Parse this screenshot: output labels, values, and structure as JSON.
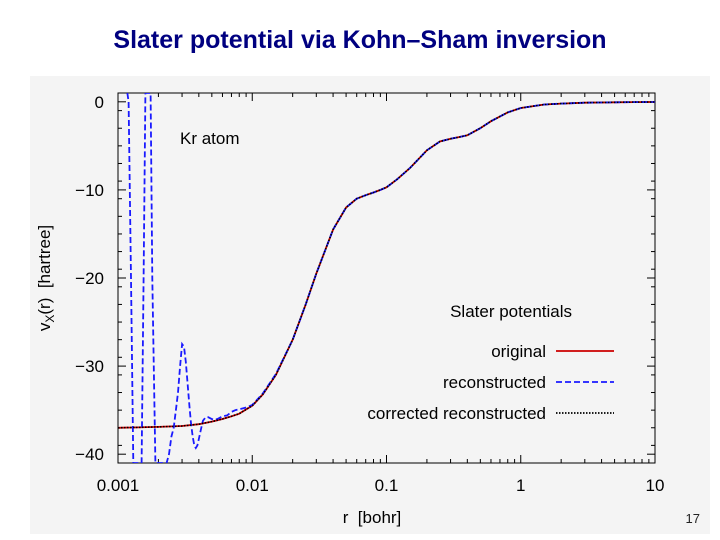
{
  "slide": {
    "title": "Slater potential via Kohn–Sham inversion",
    "page_number": "17"
  },
  "colors": {
    "title": "#000080",
    "original": "#cc0000",
    "reconstructed": "#1a1aff",
    "corrected_reconstructed": "#000000",
    "panel_background": "#f4f4f4"
  },
  "chart_data": {
    "type": "line",
    "annotation": "Kr atom",
    "xlabel": "r  [bohr]",
    "ylabel_main": "v",
    "ylabel_sub": "X",
    "ylabel_rest": "(r)  [hartree]",
    "x_scale": "log",
    "xlim": [
      0.001,
      10
    ],
    "ylim": [
      -41,
      1
    ],
    "x_ticks": [
      0.001,
      0.01,
      0.1,
      1,
      10
    ],
    "x_tick_labels": [
      "0.001",
      "0.01",
      "0.1",
      "1",
      "10"
    ],
    "y_ticks": [
      0,
      -10,
      -20,
      -30,
      -40
    ],
    "y_tick_labels": [
      "0",
      "−10",
      "−20",
      "−30",
      "−40"
    ],
    "grid": false,
    "legend_title": "Slater potentials",
    "legend_position": "lower-right",
    "series": [
      {
        "name": "original",
        "style": "solid",
        "x": [
          0.001,
          0.002,
          0.003,
          0.004,
          0.005,
          0.006,
          0.007,
          0.008,
          0.01,
          0.012,
          0.015,
          0.02,
          0.025,
          0.03,
          0.04,
          0.05,
          0.06,
          0.07,
          0.08,
          0.09,
          0.1,
          0.12,
          0.15,
          0.2,
          0.25,
          0.3,
          0.35,
          0.4,
          0.5,
          0.6,
          0.8,
          1,
          1.5,
          2,
          3,
          5,
          7,
          10
        ],
        "y": [
          -37,
          -36.9,
          -36.8,
          -36.6,
          -36.3,
          -36.0,
          -35.7,
          -35.4,
          -34.5,
          -33.2,
          -31.0,
          -27.0,
          -23.0,
          -19.5,
          -14.5,
          -12.0,
          -11.0,
          -10.6,
          -10.3,
          -10.0,
          -9.7,
          -8.8,
          -7.5,
          -5.5,
          -4.5,
          -4.2,
          -4.0,
          -3.8,
          -3.0,
          -2.2,
          -1.2,
          -0.7,
          -0.3,
          -0.2,
          -0.1,
          -0.05,
          -0.03,
          -0.02
        ]
      },
      {
        "name": "reconstructed",
        "style": "dashed",
        "x": [
          0.00115,
          0.0012,
          0.00125,
          0.0013,
          0.00135,
          0.0014,
          0.00145,
          0.0015,
          0.00155,
          0.0016,
          0.00165,
          0.0017,
          0.00175,
          0.0018,
          0.0019,
          0.002,
          0.0021,
          0.0022,
          0.0023,
          0.0024,
          0.0025,
          0.0026,
          0.0027,
          0.0028,
          0.0029,
          0.003,
          0.0031,
          0.0032,
          0.0033,
          0.0034,
          0.0035,
          0.0036,
          0.0037,
          0.0038,
          0.0039,
          0.004,
          0.0041,
          0.0042,
          0.0043,
          0.0045,
          0.0047,
          0.005,
          0.0052,
          0.0055,
          0.006,
          0.0065,
          0.007,
          0.0075,
          0.008,
          0.0085,
          0.009,
          0.01,
          0.012,
          0.015,
          0.02,
          0.025,
          0.03,
          0.04,
          0.05,
          0.06,
          0.07,
          0.08,
          0.09,
          0.1,
          0.12,
          0.15,
          0.2,
          0.25,
          0.3,
          0.35,
          0.4,
          0.5,
          0.6,
          0.8,
          1,
          1.5,
          2,
          3,
          5,
          7,
          10
        ],
        "y": [
          2,
          0,
          -20,
          -41,
          -41,
          -41,
          -41,
          -41,
          -20,
          1,
          1,
          1,
          1,
          -20,
          -41,
          -41,
          -41,
          -41,
          -41,
          -40,
          -38,
          -37,
          -35,
          -33,
          -30,
          -27.5,
          -27.8,
          -29.5,
          -32,
          -34.5,
          -36.5,
          -38,
          -39,
          -39.3,
          -39,
          -38.3,
          -37.5,
          -36.8,
          -36.2,
          -35.8,
          -35.8,
          -36.0,
          -36.1,
          -36.0,
          -35.7,
          -35.6,
          -35.2,
          -35.0,
          -34.9,
          -34.8,
          -34.7,
          -34.4,
          -33.1,
          -30.9,
          -27.0,
          -23.0,
          -19.5,
          -14.5,
          -12.0,
          -11.0,
          -10.6,
          -10.3,
          -10.0,
          -9.7,
          -8.8,
          -7.5,
          -5.5,
          -4.5,
          -4.2,
          -4.0,
          -3.8,
          -3.0,
          -2.2,
          -1.2,
          -0.7,
          -0.3,
          -0.2,
          -0.1,
          -0.05,
          -0.03,
          -0.02
        ]
      },
      {
        "name": "corrected reconstructed",
        "style": "dotted",
        "x": [
          0.001,
          0.002,
          0.003,
          0.004,
          0.005,
          0.006,
          0.007,
          0.008,
          0.01,
          0.012,
          0.015,
          0.02,
          0.025,
          0.03,
          0.04,
          0.05,
          0.06,
          0.07,
          0.08,
          0.09,
          0.1,
          0.12,
          0.15,
          0.2,
          0.25,
          0.3,
          0.35,
          0.4,
          0.5,
          0.6,
          0.8,
          1,
          1.5,
          2,
          3,
          5,
          7,
          10
        ],
        "y": [
          -37,
          -36.9,
          -36.8,
          -36.6,
          -36.3,
          -36.0,
          -35.7,
          -35.4,
          -34.5,
          -33.2,
          -31.0,
          -27.0,
          -23.0,
          -19.5,
          -14.5,
          -12.0,
          -11.0,
          -10.6,
          -10.3,
          -10.0,
          -9.7,
          -8.8,
          -7.5,
          -5.5,
          -4.5,
          -4.2,
          -4.0,
          -3.8,
          -3.0,
          -2.2,
          -1.2,
          -0.7,
          -0.3,
          -0.2,
          -0.1,
          -0.05,
          -0.03,
          -0.02
        ]
      }
    ]
  }
}
